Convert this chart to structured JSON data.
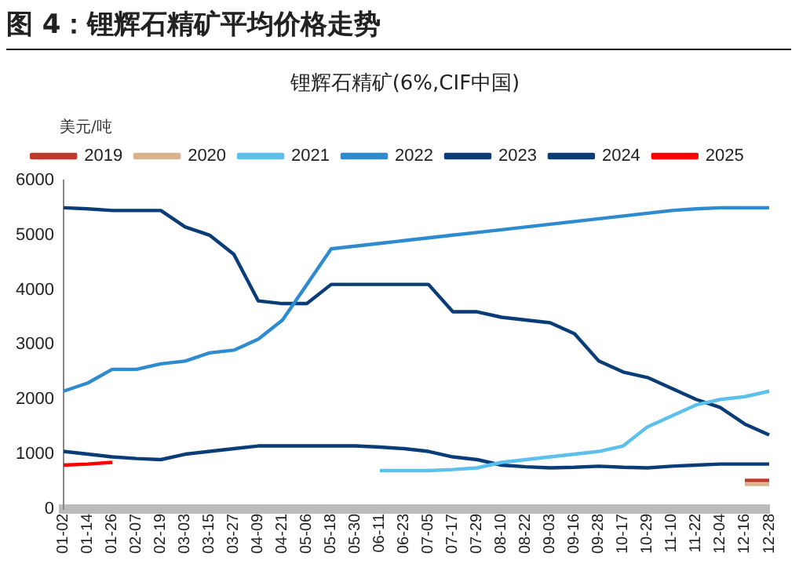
{
  "chart_data": {
    "type": "line",
    "title": "图 4：锂辉石精矿平均价格走势",
    "subtitle": "锂辉石精矿(6%,CIF中国)",
    "ylabel": "美元/吨",
    "categories": [
      "01-02",
      "01-14",
      "01-26",
      "02-07",
      "02-19",
      "03-03",
      "03-15",
      "03-27",
      "04-09",
      "04-21",
      "05-06",
      "05-18",
      "05-30",
      "06-11",
      "06-23",
      "07-05",
      "07-17",
      "07-29",
      "08-10",
      "08-22",
      "09-03",
      "09-16",
      "09-28",
      "10-17",
      "10-29",
      "11-10",
      "11-22",
      "12-04",
      "12-16",
      "12-28"
    ],
    "series": [
      {
        "name": "2019",
        "color": "#c0392b",
        "values": [
          null,
          null,
          null,
          null,
          null,
          null,
          null,
          null,
          null,
          null,
          null,
          null,
          null,
          null,
          null,
          null,
          null,
          null,
          null,
          null,
          null,
          null,
          null,
          null,
          null,
          null,
          null,
          null,
          520,
          520
        ]
      },
      {
        "name": "2020",
        "color": "#d9b38c",
        "values": [
          null,
          null,
          null,
          null,
          null,
          null,
          null,
          null,
          null,
          null,
          null,
          null,
          null,
          null,
          null,
          null,
          null,
          null,
          null,
          null,
          null,
          null,
          null,
          null,
          null,
          null,
          null,
          null,
          450,
          450
        ]
      },
      {
        "name": "2021",
        "color": "#5bc0eb",
        "values": [
          null,
          null,
          null,
          null,
          null,
          null,
          null,
          null,
          null,
          null,
          null,
          null,
          null,
          700,
          700,
          700,
          720,
          750,
          850,
          900,
          950,
          1000,
          1050,
          1150,
          1500,
          1700,
          1900,
          2000,
          2050,
          2150
        ]
      },
      {
        "name": "2022",
        "color": "#2e8bd0",
        "values": [
          2150,
          2300,
          2550,
          2550,
          2650,
          2700,
          2850,
          2900,
          3100,
          3450,
          4100,
          4750,
          4800,
          4850,
          4900,
          4950,
          5000,
          5050,
          5100,
          5150,
          5200,
          5250,
          5300,
          5350,
          5400,
          5450,
          5480,
          5500,
          5500,
          5500
        ]
      },
      {
        "name": "2023",
        "color": "#0a3d78",
        "values": [
          5500,
          5480,
          5450,
          5450,
          5450,
          5150,
          5000,
          4650,
          3800,
          3750,
          3750,
          4100,
          4100,
          4100,
          4100,
          4100,
          3600,
          3600,
          3500,
          3450,
          3400,
          3200,
          2700,
          2500,
          2400,
          2200,
          2000,
          1850,
          1550,
          1350
        ]
      },
      {
        "name": "2024",
        "color": "#0a3d78",
        "values": [
          1050,
          1000,
          950,
          920,
          900,
          1000,
          1050,
          1100,
          1150,
          1150,
          1150,
          1150,
          1150,
          1130,
          1100,
          1050,
          950,
          900,
          800,
          770,
          750,
          760,
          780,
          760,
          750,
          780,
          800,
          820,
          820,
          820
        ]
      },
      {
        "name": "2025",
        "color": "#ff0000",
        "values": [
          800,
          820,
          850,
          null,
          null,
          null,
          null,
          null,
          null,
          null,
          null,
          null,
          null,
          null,
          null,
          null,
          null,
          null,
          null,
          null,
          null,
          null,
          null,
          null,
          null,
          null,
          null,
          null,
          null,
          null
        ]
      }
    ],
    "ylim": [
      0,
      6000
    ],
    "yticks": [
      0,
      1000,
      2000,
      3000,
      4000,
      5000,
      6000
    ],
    "grid": false,
    "legend": "top",
    "marker": "none",
    "line_style": "solid"
  }
}
